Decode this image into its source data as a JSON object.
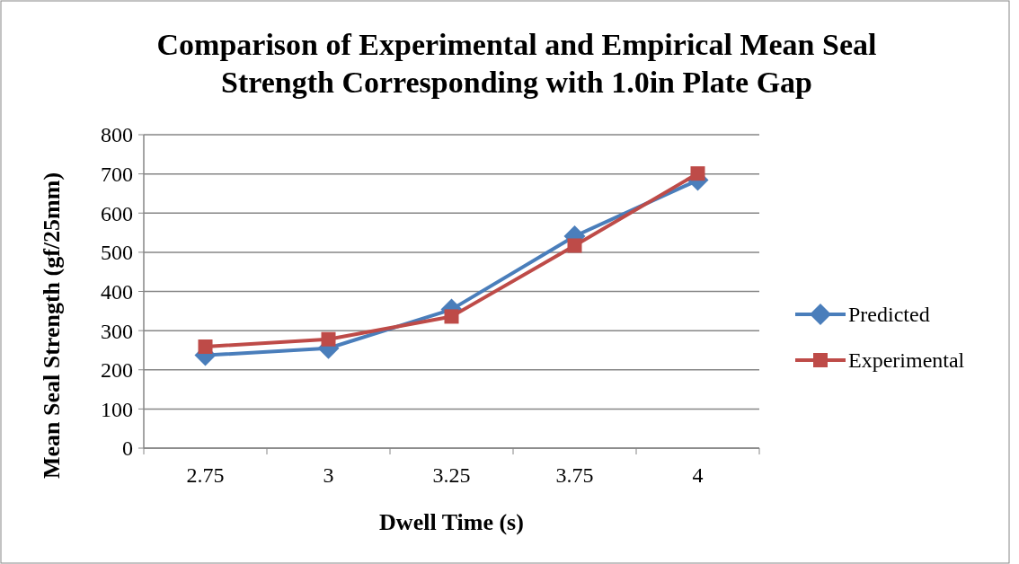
{
  "chart_data": {
    "type": "line",
    "title": "Comparison of Experimental and Empirical Mean Seal Strength Corresponding with 1.0in Plate Gap",
    "xlabel": "Dwell Time (s)",
    "ylabel": "Mean Seal Strength (gf/25mm)",
    "categories": [
      "2.75",
      "3",
      "3.25",
      "3.75",
      "4"
    ],
    "series": [
      {
        "name": "Predicted",
        "color": "#4a7ebb",
        "marker": "diamond",
        "values": [
          237,
          255,
          354,
          541,
          684
        ]
      },
      {
        "name": "Experimental",
        "color": "#be4b48",
        "marker": "square",
        "values": [
          259,
          278,
          336,
          517,
          701
        ]
      }
    ],
    "ylim": [
      0,
      800
    ],
    "yticks": [
      0,
      100,
      200,
      300,
      400,
      500,
      600,
      700,
      800
    ],
    "grid": "y",
    "legend": "right"
  }
}
